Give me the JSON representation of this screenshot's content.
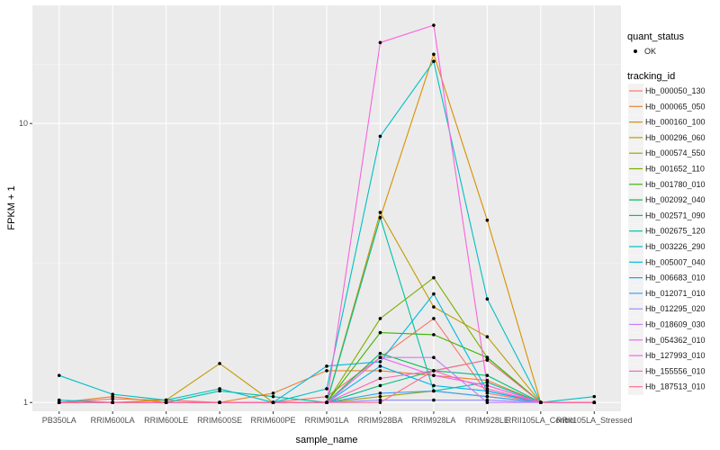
{
  "chart_data": {
    "type": "line",
    "xlabel": "sample_name",
    "ylabel": "FPKM + 1",
    "yscale": "log10",
    "ylim": [
      0.93,
      26.5
    ],
    "yticks": [
      1,
      10
    ],
    "ytick_labels": [
      "1",
      "10"
    ],
    "grid": true,
    "categories": [
      "PB350LA",
      "RRIM600LA",
      "RRIM600LE",
      "RRIM600SE",
      "RRIM600PE",
      "RRIM901LA",
      "RRIM928BA",
      "RRIM928LA",
      "RRIM928LE",
      "RRII105LA_Control",
      "RRII105LA_Stressed"
    ],
    "point_legend": {
      "title": "quant_status",
      "entries": [
        "OK"
      ]
    },
    "legend_title": "tracking_id",
    "series": [
      {
        "name": "Hb_000050_130",
        "color": "#F8766D",
        "values": [
          1.0,
          1.03,
          1.02,
          1.0,
          1.0,
          1.05,
          1.45,
          2.0,
          1.08,
          1.0,
          1.0
        ]
      },
      {
        "name": "Hb_000065_050",
        "color": "#EA8331",
        "values": [
          1.0,
          1.05,
          1.0,
          1.0,
          1.08,
          1.3,
          1.3,
          1.25,
          1.2,
          1.0,
          1.0
        ]
      },
      {
        "name": "Hb_000160_100",
        "color": "#D89000",
        "values": [
          1.0,
          1.0,
          1.0,
          1.0,
          1.0,
          1.0,
          4.6,
          17.7,
          4.5,
          1.0,
          1.0
        ]
      },
      {
        "name": "Hb_000296_060",
        "color": "#C09B00",
        "values": [
          1.0,
          1.0,
          1.02,
          1.38,
          1.0,
          1.0,
          4.8,
          2.2,
          1.72,
          1.0,
          1.0
        ]
      },
      {
        "name": "Hb_000574_550",
        "color": "#A3A500",
        "values": [
          1.0,
          1.0,
          1.0,
          1.0,
          1.0,
          1.0,
          1.05,
          1.1,
          1.05,
          1.0,
          1.0
        ]
      },
      {
        "name": "Hb_001652_110",
        "color": "#7CAE00",
        "values": [
          1.0,
          1.0,
          1.0,
          1.0,
          1.0,
          1.0,
          2.0,
          2.8,
          1.45,
          1.0,
          1.0
        ]
      },
      {
        "name": "Hb_001780_010",
        "color": "#39B600",
        "values": [
          1.0,
          1.0,
          1.0,
          1.0,
          1.0,
          1.0,
          1.78,
          1.75,
          1.45,
          1.0,
          1.0
        ]
      },
      {
        "name": "Hb_002092_040",
        "color": "#00BB4E",
        "values": [
          1.0,
          1.0,
          1.0,
          1.0,
          1.0,
          1.0,
          1.5,
          1.3,
          1.42,
          1.0,
          1.0
        ]
      },
      {
        "name": "Hb_002571_090",
        "color": "#00BF7D",
        "values": [
          1.0,
          1.0,
          1.0,
          1.0,
          1.0,
          1.0,
          1.15,
          1.3,
          1.25,
          1.0,
          1.0
        ]
      },
      {
        "name": "Hb_002675_120",
        "color": "#00C1A3",
        "values": [
          1.0,
          1.0,
          1.0,
          1.1,
          1.05,
          1.0,
          4.6,
          1.1,
          1.18,
          1.0,
          1.0
        ]
      },
      {
        "name": "Hb_003226_290",
        "color": "#00BFC4",
        "values": [
          1.25,
          1.07,
          1.02,
          1.12,
          1.0,
          1.12,
          9.0,
          16.7,
          2.35,
          1.0,
          1.05
        ]
      },
      {
        "name": "Hb_005007_040",
        "color": "#00BAE0",
        "values": [
          1.02,
          1.0,
          1.0,
          1.0,
          1.0,
          1.35,
          1.4,
          2.45,
          1.1,
          1.0,
          1.0
        ]
      },
      {
        "name": "Hb_006683_010",
        "color": "#00B0F6",
        "values": [
          1.0,
          1.0,
          1.0,
          1.0,
          1.0,
          1.0,
          1.35,
          1.15,
          1.1,
          1.0,
          1.0
        ]
      },
      {
        "name": "Hb_012071_010",
        "color": "#35A2FF",
        "values": [
          1.0,
          1.0,
          1.0,
          1.0,
          1.0,
          1.0,
          1.08,
          1.1,
          1.05,
          1.0,
          1.0
        ]
      },
      {
        "name": "Hb_012295_020",
        "color": "#9590FF",
        "values": [
          1.0,
          1.0,
          1.0,
          1.0,
          1.0,
          1.0,
          1.02,
          1.02,
          1.02,
          1.0,
          1.0
        ]
      },
      {
        "name": "Hb_018609_030",
        "color": "#C77CFF",
        "values": [
          1.0,
          1.0,
          1.0,
          1.0,
          1.0,
          1.0,
          1.45,
          1.45,
          1.0,
          1.0,
          1.0
        ]
      },
      {
        "name": "Hb_054362_010",
        "color": "#E76BF3",
        "values": [
          1.0,
          1.0,
          1.0,
          1.0,
          1.0,
          1.0,
          1.45,
          1.25,
          1.15,
          1.0,
          1.0
        ]
      },
      {
        "name": "Hb_127993_010",
        "color": "#FA62DB",
        "values": [
          1.0,
          1.0,
          1.0,
          1.0,
          1.0,
          1.0,
          19.5,
          22.5,
          1.15,
          1.0,
          1.0
        ]
      },
      {
        "name": "Hb_155556_010",
        "color": "#FF62BC",
        "values": [
          1.0,
          1.0,
          1.0,
          1.0,
          1.0,
          1.0,
          1.22,
          1.3,
          1.12,
          1.0,
          1.0
        ]
      },
      {
        "name": "Hb_187513_010",
        "color": "#FF6C91",
        "values": [
          1.0,
          1.0,
          1.0,
          1.0,
          1.0,
          1.0,
          1.0,
          1.3,
          1.42,
          1.0,
          1.0
        ]
      }
    ]
  },
  "colors": {
    "panel_bg": "#EBEBEB",
    "grid_major": "#FFFFFF",
    "grid_minor": "#F5F5F5",
    "point": "#000000"
  }
}
